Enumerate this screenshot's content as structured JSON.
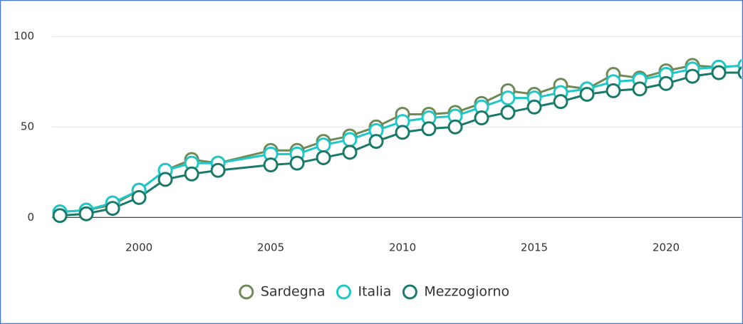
{
  "chart_data": {
    "type": "line",
    "x": [
      1997,
      1998,
      1999,
      2000,
      2001,
      2002,
      2003,
      2005,
      2006,
      2007,
      2008,
      2009,
      2010,
      2011,
      2012,
      2013,
      2014,
      2015,
      2016,
      2017,
      2018,
      2019,
      2020,
      2021,
      2022,
      2023
    ],
    "series": [
      {
        "name": "Sardegna",
        "color": "#6e8a57",
        "values": [
          3,
          4,
          7,
          15,
          26,
          32,
          30,
          37,
          37,
          42,
          45,
          50,
          57,
          57,
          58,
          63,
          70,
          68,
          73,
          71,
          79,
          77,
          81,
          84,
          83,
          84
        ]
      },
      {
        "name": "Italia",
        "color": "#1fc8c8",
        "values": [
          3,
          4,
          8,
          15,
          26,
          30,
          30,
          35,
          35,
          40,
          43,
          48,
          53,
          55,
          56,
          61,
          66,
          66,
          69,
          71,
          75,
          76,
          79,
          82,
          83,
          84
        ]
      },
      {
        "name": "Mezzogiorno",
        "color": "#1a7a6a",
        "values": [
          1,
          2,
          5,
          11,
          21,
          24,
          26,
          29,
          30,
          33,
          36,
          42,
          47,
          49,
          50,
          55,
          58,
          61,
          64,
          68,
          70,
          71,
          74,
          78,
          80,
          80
        ]
      }
    ],
    "xlim": [
      1996.7,
      2023
    ],
    "xticks": [
      2000,
      2005,
      2010,
      2015,
      2020
    ],
    "ylim": [
      -5,
      117
    ],
    "yticks": [
      0,
      50,
      100
    ],
    "grid": true,
    "legend": "bottom"
  }
}
